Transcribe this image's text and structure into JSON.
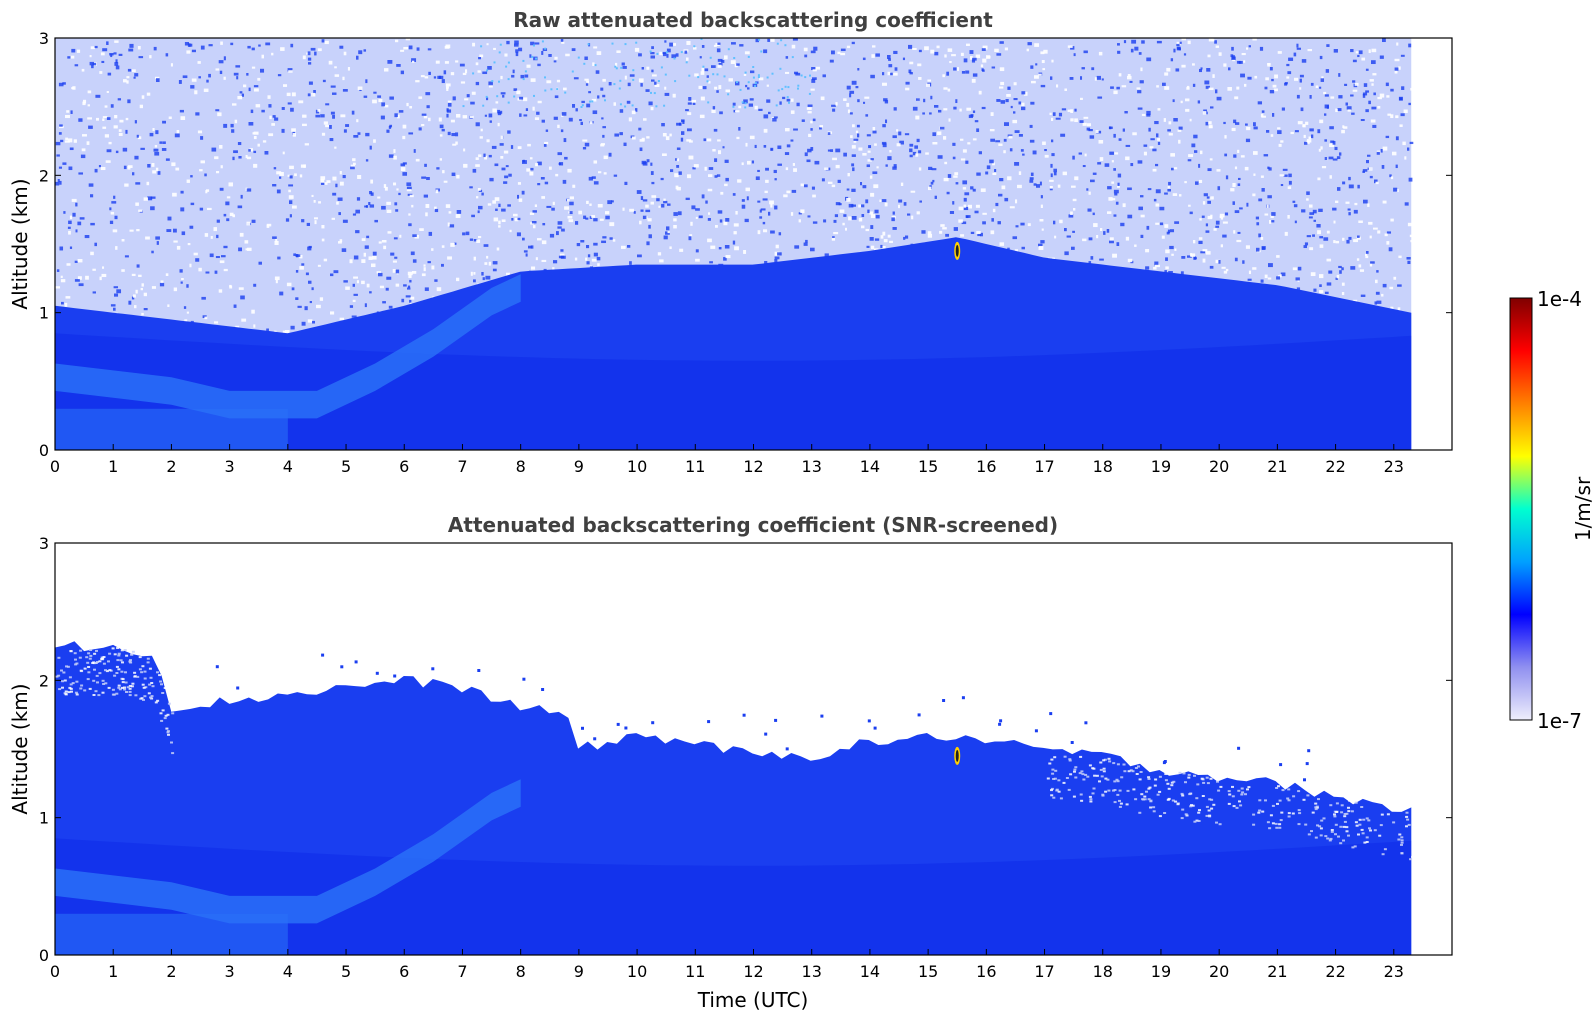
{
  "chart_data": [
    {
      "type": "heatmap",
      "title": "Raw attenuated backscattering coefficient",
      "xlabel": "",
      "ylabel": "Altitude (km)",
      "xlim": [
        0,
        24
      ],
      "ylim": [
        0,
        3
      ],
      "data_x_end": 23.3,
      "xticks": [
        "0",
        "1",
        "2",
        "3",
        "4",
        "5",
        "6",
        "7",
        "8",
        "9",
        "10",
        "11",
        "12",
        "13",
        "14",
        "15",
        "16",
        "17",
        "18",
        "19",
        "20",
        "21",
        "22",
        "23"
      ],
      "yticks": [
        "0",
        "1",
        "2",
        "3"
      ],
      "boundary_layer_top_km": [
        [
          0,
          1.05
        ],
        [
          2,
          0.95
        ],
        [
          4,
          0.85
        ],
        [
          6,
          1.05
        ],
        [
          8,
          1.3
        ],
        [
          10,
          1.35
        ],
        [
          12,
          1.35
        ],
        [
          14,
          1.45
        ],
        [
          15.5,
          1.55
        ],
        [
          17,
          1.4
        ],
        [
          19,
          1.3
        ],
        [
          21,
          1.2
        ],
        [
          23.3,
          1.0
        ]
      ],
      "aerosol_plume_km": [
        [
          0,
          0.55
        ],
        [
          2,
          0.45
        ],
        [
          3,
          0.35
        ],
        [
          4.5,
          0.35
        ],
        [
          5.5,
          0.55
        ],
        [
          6.5,
          0.8
        ],
        [
          7.5,
          1.1
        ],
        [
          8,
          1.2
        ]
      ],
      "feature": {
        "time": 15.5,
        "altitude_km": 1.45,
        "value": "1e-4"
      }
    },
    {
      "type": "heatmap",
      "title": "Attenuated backscattering coefficient (SNR-screened)",
      "xlabel": "Time (UTC)",
      "ylabel": "Altitude (km)",
      "xlim": [
        0,
        24
      ],
      "ylim": [
        0,
        3
      ],
      "data_x_end": 23.3,
      "xticks": [
        "0",
        "1",
        "2",
        "3",
        "4",
        "5",
        "6",
        "7",
        "8",
        "9",
        "10",
        "11",
        "12",
        "13",
        "14",
        "15",
        "16",
        "17",
        "18",
        "19",
        "20",
        "21",
        "22",
        "23"
      ],
      "yticks": [
        "0",
        "1",
        "2",
        "3"
      ],
      "screened_top_km": [
        [
          0,
          2.25
        ],
        [
          1,
          2.25
        ],
        [
          1.7,
          2.2
        ],
        [
          2,
          1.8
        ],
        [
          3,
          1.85
        ],
        [
          4,
          1.9
        ],
        [
          5,
          1.95
        ],
        [
          6,
          2.0
        ],
        [
          7,
          1.95
        ],
        [
          8,
          1.8
        ],
        [
          8.8,
          1.75
        ],
        [
          9,
          1.5
        ],
        [
          10,
          1.6
        ],
        [
          11,
          1.55
        ],
        [
          12,
          1.45
        ],
        [
          13,
          1.45
        ],
        [
          14,
          1.55
        ],
        [
          15.5,
          1.6
        ],
        [
          16,
          1.55
        ],
        [
          17,
          1.5
        ],
        [
          18,
          1.45
        ],
        [
          19,
          1.35
        ],
        [
          20,
          1.3
        ],
        [
          21,
          1.25
        ],
        [
          22,
          1.15
        ],
        [
          23.3,
          1.05
        ]
      ],
      "aerosol_plume_km": [
        [
          0,
          0.55
        ],
        [
          2,
          0.45
        ],
        [
          3,
          0.35
        ],
        [
          4.5,
          0.35
        ],
        [
          5.5,
          0.55
        ],
        [
          6.5,
          0.8
        ],
        [
          7.5,
          1.1
        ],
        [
          8,
          1.2
        ]
      ],
      "feature": {
        "time": 15.5,
        "altitude_km": 1.45,
        "value": "1e-4"
      }
    }
  ],
  "colorbar": {
    "min_label": "1e-7",
    "max_label": "1e-4",
    "unit": "1/m/sr",
    "colors": [
      "#eeeefc",
      "#9090f0",
      "#0000ff",
      "#00a0ff",
      "#00ffd0",
      "#ffff00",
      "#ff8000",
      "#ff0000",
      "#800000"
    ]
  },
  "colors": {
    "background_blue": "#1a3ef0",
    "deep_blue": "#0a20e6",
    "plume_blue": "#2a70f8",
    "noise_white": "#ffffff"
  }
}
